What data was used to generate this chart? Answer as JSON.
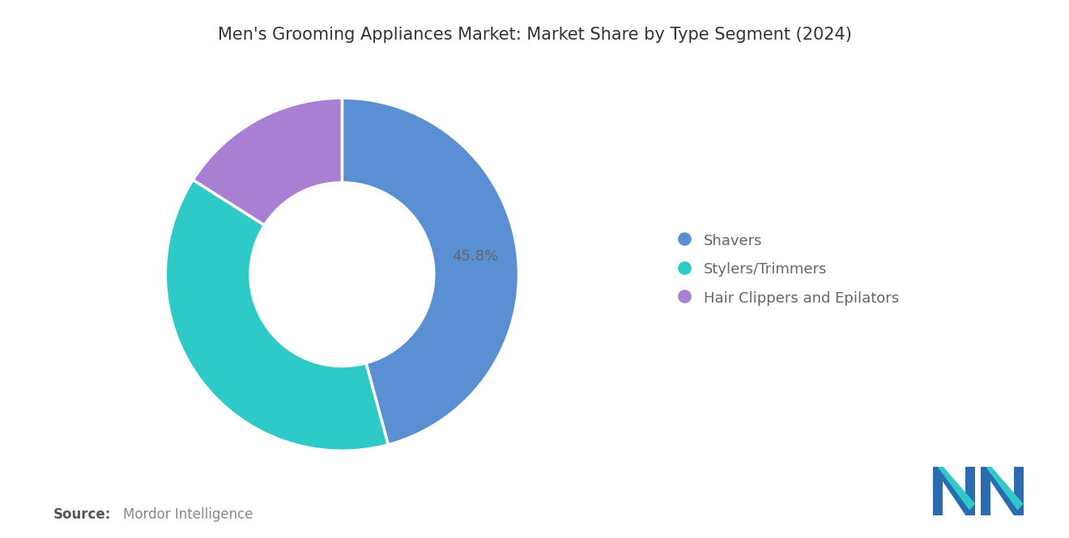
{
  "title": "Men's Grooming Appliances Market: Market Share by Type Segment (2024)",
  "segments": [
    "Shavers",
    "Stylers/Trimmers",
    "Hair Clippers and Epilators"
  ],
  "values": [
    45.8,
    38.2,
    16.0
  ],
  "colors": [
    "#5B8FD4",
    "#2ECAC8",
    "#A97FD4"
  ],
  "label_text": "45.8%",
  "source_bold": "Source:",
  "source_text": "Mordor Intelligence",
  "background_color": "#FFFFFF",
  "title_fontsize": 15,
  "label_fontsize": 13,
  "legend_fontsize": 13,
  "source_fontsize": 12,
  "donut_width": 0.48
}
